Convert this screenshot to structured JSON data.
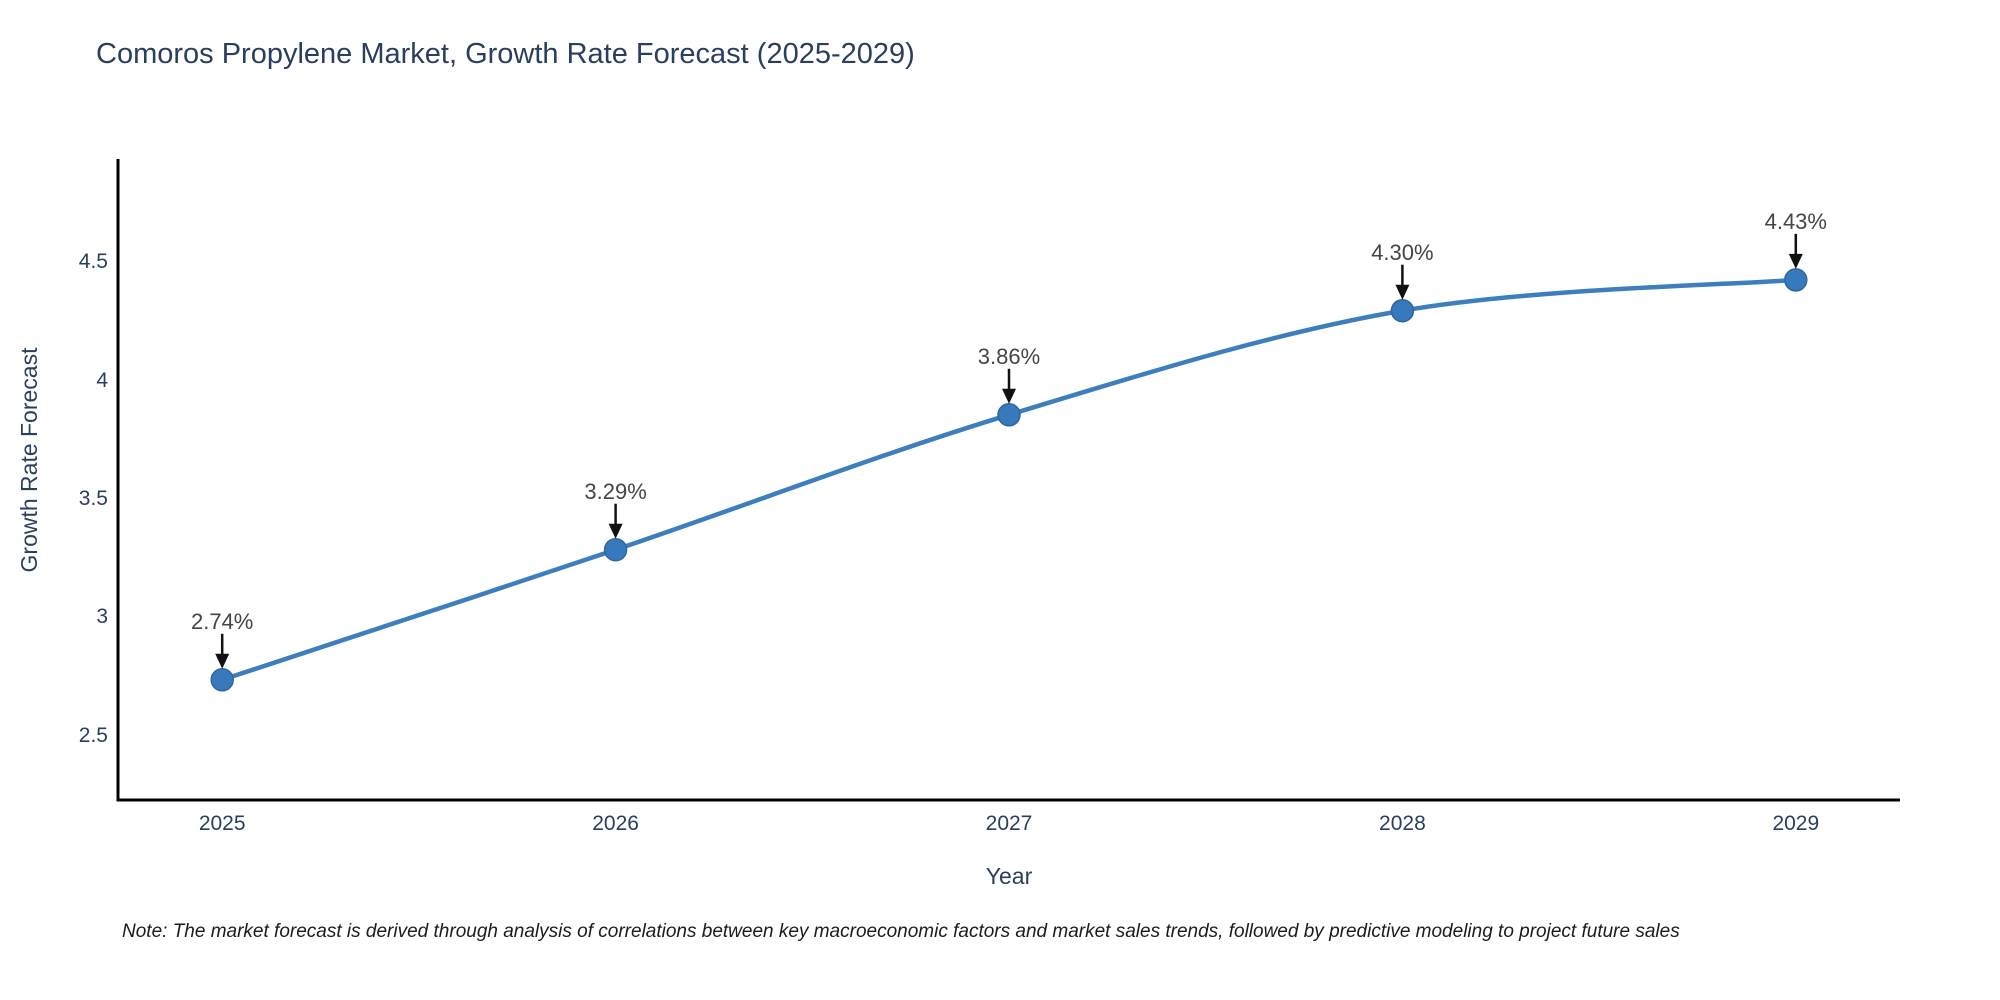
{
  "chart": {
    "title": "Comoros Propylene Market, Growth Rate Forecast (2025-2029)",
    "xlabel": "Year",
    "ylabel": "Growth Rate Forecast",
    "note": "Note: The market forecast is derived through analysis of correlations between key macroeconomic factors and market sales trends, followed by predictive modeling to project future sales"
  },
  "chart_data": {
    "type": "line",
    "title": "Comoros Propylene Market, Growth Rate Forecast (2025-2029)",
    "xlabel": "Year",
    "ylabel": "Growth Rate Forecast",
    "x": [
      2025,
      2026,
      2027,
      2028,
      2029
    ],
    "values": [
      2.74,
      3.29,
      3.86,
      4.3,
      4.43
    ],
    "point_labels": [
      "2.74%",
      "3.29%",
      "3.86%",
      "4.30%",
      "4.43%"
    ],
    "x_tick_labels": [
      "2025",
      "2026",
      "2027",
      "2028",
      "2029"
    ],
    "y_ticks": [
      2.5,
      3,
      3.5,
      4,
      4.5
    ],
    "y_tick_labels": [
      "2.5",
      "3",
      "3.5",
      "4",
      "4.5"
    ],
    "xlim": [
      2024.735,
      2029.265
    ],
    "ylim": [
      2.232,
      4.941
    ],
    "grid": false,
    "legend": "none",
    "line_shape": "spline",
    "line_color": "#3d7ebd",
    "marker_color": "#3879bd",
    "marker_edge_color": "#2f669c",
    "axis_line_color": "#000000",
    "annotation_arrow_color": "#111111",
    "title_color": "#2a3f5f"
  }
}
